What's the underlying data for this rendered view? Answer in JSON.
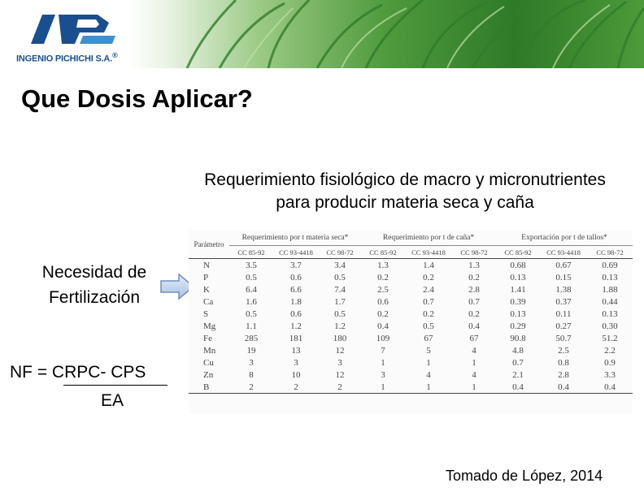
{
  "logo": {
    "company": "INGENIO PICHICHI S.A.",
    "registered_mark": "®",
    "colors": {
      "primary": "#1a4f8f",
      "accent": "#3f8fd3"
    }
  },
  "slide": {
    "title": "Que Dosis Aplicar?",
    "subtitle_line1": "Requerimiento fisiológico de macro y micronutrientes",
    "subtitle_line2": "para producir materia seca y caña",
    "left_label_line1": "Necesidad de",
    "left_label_line2": "Fertilización",
    "formula_numerator": "NF = CRPC- CPS",
    "formula_denominator": "EA",
    "source": "Tomado de López,  2014"
  },
  "table": {
    "param_header": "Parámetro",
    "groups": [
      "Requerimiento por t materia seca*",
      "Requerimiento por t de caña*",
      "Exportación por t de tallos*"
    ],
    "varieties": [
      "CC 85-92",
      "CC 93-4418",
      "CC 98-72",
      "CC 85-92",
      "CC 93-4418",
      "CC 98-72",
      "CC 85-92",
      "CC 93-4418",
      "CC 98-72"
    ],
    "rows": [
      [
        "N",
        "3.5",
        "3.7",
        "3.4",
        "1.3",
        "1.4",
        "1.3",
        "0.68",
        "0.67",
        "0.69"
      ],
      [
        "P",
        "0.5",
        "0.6",
        "0.5",
        "0.2",
        "0.2",
        "0.2",
        "0.13",
        "0.15",
        "0.13"
      ],
      [
        "K",
        "6.4",
        "6.6",
        "7.4",
        "2.5",
        "2.4",
        "2.8",
        "1.41",
        "1.38",
        "1.88"
      ],
      [
        "Ca",
        "1.6",
        "1.8",
        "1.7",
        "0.6",
        "0.7",
        "0.7",
        "0.39",
        "0.37",
        "0.44"
      ],
      [
        "S",
        "0.5",
        "0.6",
        "0.5",
        "0.2",
        "0.2",
        "0.2",
        "0.13",
        "0.11",
        "0.13"
      ],
      [
        "Mg",
        "1.1",
        "1.2",
        "1.2",
        "0.4",
        "0.5",
        "0.4",
        "0.29",
        "0.27",
        "0.30"
      ],
      [
        "Fe",
        "285",
        "181",
        "180",
        "109",
        "67",
        "67",
        "90.8",
        "50.7",
        "51.2"
      ],
      [
        "Mn",
        "19",
        "13",
        "12",
        "7",
        "5",
        "4",
        "4.8",
        "2.5",
        "2.2"
      ],
      [
        "Cu",
        "3",
        "3",
        "3",
        "1",
        "1",
        "1",
        "0.7",
        "0.8",
        "0.9"
      ],
      [
        "Zn",
        "8",
        "10",
        "12",
        "3",
        "4",
        "4",
        "2.1",
        "2.8",
        "3.3"
      ],
      [
        "B",
        "2",
        "2",
        "2",
        "1",
        "1",
        "1",
        "0.4",
        "0.4",
        "0.4"
      ]
    ]
  },
  "icons": {
    "arrow": "right-arrow-icon"
  }
}
